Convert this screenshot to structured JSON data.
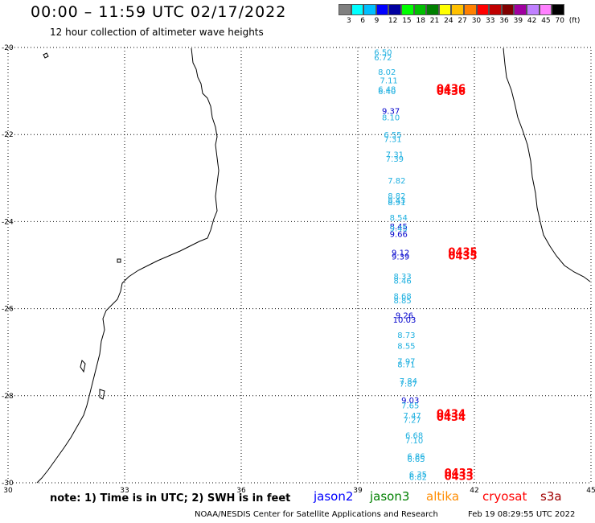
{
  "header": {
    "title": "00:00 – 11:59 UTC 02/17/2022",
    "subtitle": "12 hour collection of altimeter wave heights"
  },
  "legend": {
    "colors": [
      "#808080",
      "#00ffff",
      "#00bfff",
      "#0000ff",
      "#0000a0",
      "#00ff00",
      "#00c000",
      "#008000",
      "#ffff00",
      "#ffc000",
      "#ff8000",
      "#ff0000",
      "#c00000",
      "#800000",
      "#a000a0",
      "#c080ff",
      "#ff80ff",
      "#000000"
    ],
    "labels": [
      "3",
      "6",
      "9",
      "12",
      "15",
      "18",
      "21",
      "24",
      "27",
      "30",
      "33",
      "36",
      "39",
      "42",
      "45",
      "70",
      "(ft)"
    ]
  },
  "axes": {
    "x_ticks": [
      "30",
      "33",
      "36",
      "39",
      "42",
      "45"
    ],
    "y_ticks": [
      "-20",
      "-22",
      "-24",
      "-26",
      "-28",
      "-30"
    ]
  },
  "wave_labels": [
    {
      "text": "6.50",
      "color": "#1fb0e0",
      "lon": 39.65,
      "lat": -20.1
    },
    {
      "text": "6.72",
      "color": "#1fb0e0",
      "lon": 39.65,
      "lat": -20.22
    },
    {
      "text": "8.02",
      "color": "#1fb0e0",
      "lon": 39.75,
      "lat": -20.55
    },
    {
      "text": "7.11",
      "color": "#1fb0e0",
      "lon": 39.8,
      "lat": -20.75
    },
    {
      "text": "6.48",
      "color": "#1fb0e0",
      "lon": 39.75,
      "lat": -20.95
    },
    {
      "text": "6.40",
      "color": "#1fb0e0",
      "lon": 39.75,
      "lat": -21.0
    },
    {
      "text": "0436",
      "color": "#ff0000",
      "lon": 41.4,
      "lat": -20.95
    },
    {
      "text": "0436",
      "color": "#ff0000",
      "lon": 41.4,
      "lat": -21.02
    },
    {
      "text": "9.37",
      "color": "#0000cc",
      "lon": 39.85,
      "lat": -21.45
    },
    {
      "text": "8.10",
      "color": "#1fb0e0",
      "lon": 39.85,
      "lat": -21.6
    },
    {
      "text": "6.55",
      "color": "#1fb0e0",
      "lon": 39.9,
      "lat": -22.0
    },
    {
      "text": "7.31",
      "color": "#1fb0e0",
      "lon": 39.9,
      "lat": -22.1
    },
    {
      "text": "7.31",
      "color": "#1fb0e0",
      "lon": 39.95,
      "lat": -22.45
    },
    {
      "text": "7.39",
      "color": "#1fb0e0",
      "lon": 39.95,
      "lat": -22.55
    },
    {
      "text": "7.82",
      "color": "#1fb0e0",
      "lon": 40.0,
      "lat": -23.05
    },
    {
      "text": "8.82",
      "color": "#1fb0e0",
      "lon": 40.0,
      "lat": -23.4
    },
    {
      "text": "8.43",
      "color": "#1fb0e0",
      "lon": 40.0,
      "lat": -23.5
    },
    {
      "text": "8.91",
      "color": "#1fb0e0",
      "lon": 40.0,
      "lat": -23.55
    },
    {
      "text": "8.54",
      "color": "#1fb0e0",
      "lon": 40.05,
      "lat": -23.9
    },
    {
      "text": "8.45",
      "color": "#0000cc",
      "lon": 40.05,
      "lat": -24.1
    },
    {
      "text": "9.45",
      "color": "#1fb0e0",
      "lon": 40.05,
      "lat": -24.15
    },
    {
      "text": "9.66",
      "color": "#0000cc",
      "lon": 40.05,
      "lat": -24.28
    },
    {
      "text": "9.12",
      "color": "#0000cc",
      "lon": 40.1,
      "lat": -24.7
    },
    {
      "text": "9.39",
      "color": "#0000cc",
      "lon": 40.1,
      "lat": -24.8
    },
    {
      "text": "0435",
      "color": "#ff0000",
      "lon": 41.7,
      "lat": -24.7
    },
    {
      "text": "0435",
      "color": "#ff0000",
      "lon": 41.7,
      "lat": -24.8
    },
    {
      "text": "8.33",
      "color": "#1fb0e0",
      "lon": 40.15,
      "lat": -25.25
    },
    {
      "text": "8.46",
      "color": "#1fb0e0",
      "lon": 40.15,
      "lat": -25.35
    },
    {
      "text": "8.68",
      "color": "#1fb0e0",
      "lon": 40.15,
      "lat": -25.7
    },
    {
      "text": "8.85",
      "color": "#1fb0e0",
      "lon": 40.15,
      "lat": -25.8
    },
    {
      "text": "9.26",
      "color": "#0000cc",
      "lon": 40.2,
      "lat": -26.15
    },
    {
      "text": "10.03",
      "color": "#0000cc",
      "lon": 40.2,
      "lat": -26.25
    },
    {
      "text": "8.73",
      "color": "#1fb0e0",
      "lon": 40.25,
      "lat": -26.6
    },
    {
      "text": "8.55",
      "color": "#1fb0e0",
      "lon": 40.25,
      "lat": -26.85
    },
    {
      "text": "7.97",
      "color": "#1fb0e0",
      "lon": 40.25,
      "lat": -27.2
    },
    {
      "text": "8.71",
      "color": "#1fb0e0",
      "lon": 40.25,
      "lat": -27.27
    },
    {
      "text": "7.84",
      "color": "#1fb0e0",
      "lon": 40.3,
      "lat": -27.65
    },
    {
      "text": "7.87",
      "color": "#1fb0e0",
      "lon": 40.3,
      "lat": -27.72
    },
    {
      "text": "9.03",
      "color": "#0000cc",
      "lon": 40.35,
      "lat": -28.1
    },
    {
      "text": "7.65",
      "color": "#1fb0e0",
      "lon": 40.35,
      "lat": -28.22
    },
    {
      "text": "7.47",
      "color": "#1fb0e0",
      "lon": 40.4,
      "lat": -28.45
    },
    {
      "text": "7.27",
      "color": "#1fb0e0",
      "lon": 40.4,
      "lat": -28.55
    },
    {
      "text": "0434",
      "color": "#ff0000",
      "lon": 41.4,
      "lat": -28.42
    },
    {
      "text": "0434",
      "color": "#ff0000",
      "lon": 41.4,
      "lat": -28.5
    },
    {
      "text": "6.68",
      "color": "#1fb0e0",
      "lon": 40.45,
      "lat": -28.9
    },
    {
      "text": "7.10",
      "color": "#1fb0e0",
      "lon": 40.45,
      "lat": -29.02
    },
    {
      "text": "6.86",
      "color": "#1fb0e0",
      "lon": 40.5,
      "lat": -29.38
    },
    {
      "text": "6.65",
      "color": "#1fb0e0",
      "lon": 40.5,
      "lat": -29.45
    },
    {
      "text": "6.35",
      "color": "#1fb0e0",
      "lon": 40.55,
      "lat": -29.8
    },
    {
      "text": "6.82",
      "color": "#1fb0e0",
      "lon": 40.55,
      "lat": -29.86
    },
    {
      "text": "0433",
      "color": "#ff0000",
      "lon": 41.6,
      "lat": -29.78
    },
    {
      "text": "0433",
      "color": "#ff0000",
      "lon": 41.6,
      "lat": -29.86
    }
  ],
  "footer": {
    "note": "note: 1) Time is in UTC; 2) SWH is in feet",
    "satellites": [
      {
        "name": "jason2",
        "color": "#0000ff"
      },
      {
        "name": "jason3",
        "color": "#008000"
      },
      {
        "name": "altika",
        "color": "#ff8c00"
      },
      {
        "name": "cryosat",
        "color": "#ff0000"
      },
      {
        "name": "s3a",
        "color": "#a00000"
      }
    ],
    "credit": "NOAA/NESDIS Center for Satellite Applications and Research",
    "timestamp": "Feb 19 08:29:55 UTC 2022"
  }
}
